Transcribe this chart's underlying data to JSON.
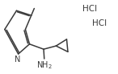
{
  "bg_color": "#ffffff",
  "line_color": "#3a3a3a",
  "line_width": 1.1,
  "text_color": "#3a3a3a",
  "font_size": 7.0,
  "hcl_font_size": 7.5,
  "nh2_font_size": 7.0,
  "hcl1": [
    0.76,
    0.88
  ],
  "hcl2": [
    0.84,
    0.68
  ]
}
